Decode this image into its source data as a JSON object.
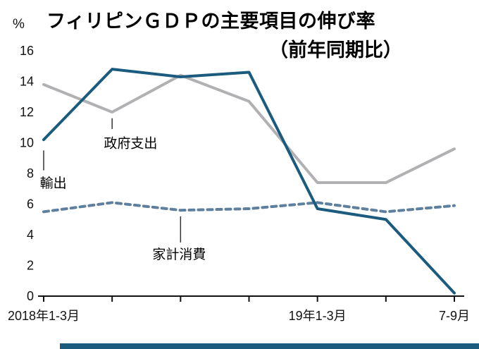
{
  "chart_data": {
    "type": "line",
    "title": "フィリピンＧＤＰの主要項目の伸び率",
    "subtitle": "（前年同期比）",
    "unit_label": "%",
    "ylim": [
      0,
      16
    ],
    "ytick_step": 2,
    "grid": false,
    "legend_position": "inline-annotations",
    "x_tick_labels": [
      {
        "index": 0,
        "label": "2018年1-3月"
      },
      {
        "index": 4,
        "label": "19年1-3月"
      },
      {
        "index": 6,
        "label": "7-9月"
      }
    ],
    "series": [
      {
        "name": "政府支出",
        "color": "#b1b1b4",
        "style": "solid",
        "values": [
          13.8,
          12.0,
          14.4,
          12.7,
          7.4,
          7.4,
          9.6
        ]
      },
      {
        "name": "家計消費",
        "color": "#5f7f9e",
        "style": "dashed",
        "values": [
          5.5,
          6.1,
          5.6,
          5.7,
          6.1,
          5.5,
          5.9
        ]
      },
      {
        "name": "輸出",
        "color": "#1b5b7e",
        "style": "solid",
        "values": [
          10.2,
          14.8,
          14.3,
          14.6,
          5.7,
          5.0,
          0.2
        ]
      }
    ],
    "annotations": [
      {
        "text": "輸出",
        "x_index": 0.14,
        "y_value": 7.4,
        "leader": {
          "x_index": 0.0,
          "y_from": 8.2,
          "y_to": 9.5
        }
      },
      {
        "text": "政府支出",
        "x_index": 1.27,
        "y_value": 10.0,
        "leader": {
          "x_index": 1.0,
          "y_from": 10.9,
          "y_to": 11.6
        }
      },
      {
        "text": "家計消費",
        "x_index": 1.98,
        "y_value": 2.75,
        "leader": {
          "x_index": 2.0,
          "y_from": 3.5,
          "y_to": 5.2
        }
      }
    ],
    "accent_bar_color": "#1b5b7e"
  }
}
